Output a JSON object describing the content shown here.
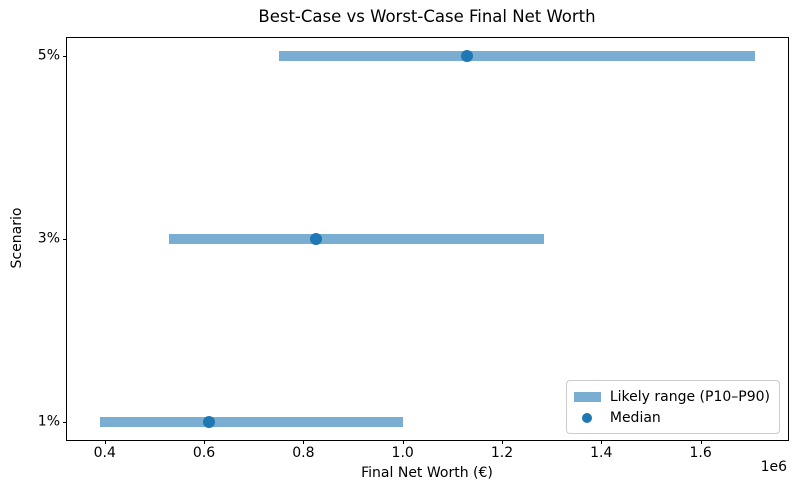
{
  "chart_data": {
    "type": "bar",
    "subtype": "horizontal_range_bars_with_median_dots",
    "title": "Best-Case vs Worst-Case Final Net Worth",
    "xlabel": "Final Net Worth (€)",
    "ylabel": "Scenario",
    "x_offset_label": "1e6",
    "categories_bottom_to_top": [
      "1%",
      "3%",
      "5%"
    ],
    "rows": [
      {
        "scenario": "1%",
        "y_index": 0,
        "p10": 390000,
        "median": 610000,
        "p90": 1000000
      },
      {
        "scenario": "3%",
        "y_index": 1,
        "p10": 530000,
        "median": 825000,
        "p90": 1285000
      },
      {
        "scenario": "5%",
        "y_index": 2,
        "p10": 750000,
        "median": 1130000,
        "p90": 1710000
      }
    ],
    "xticks": [
      {
        "label": "0.4",
        "value": 400000
      },
      {
        "label": "0.6",
        "value": 600000
      },
      {
        "label": "0.8",
        "value": 800000
      },
      {
        "label": "1.0",
        "value": 1000000
      },
      {
        "label": "1.2",
        "value": 1200000
      },
      {
        "label": "1.4",
        "value": 1400000
      },
      {
        "label": "1.6",
        "value": 1600000
      }
    ],
    "xlim": [
      324000,
      1776000
    ],
    "ylim": [
      -0.1,
      2.1
    ],
    "grid": false,
    "legend_position": "lower right",
    "legend": [
      {
        "label": "Likely range (P10–P90)",
        "marker": "patch"
      },
      {
        "label": "Median",
        "marker": "dot"
      }
    ],
    "colors": {
      "bar": "#79ADD2",
      "median_dot": "#1F77B4",
      "spine": "#000000",
      "text": "#000000",
      "legend_border": "#CCCCCC",
      "background": "#FFFFFF"
    }
  }
}
